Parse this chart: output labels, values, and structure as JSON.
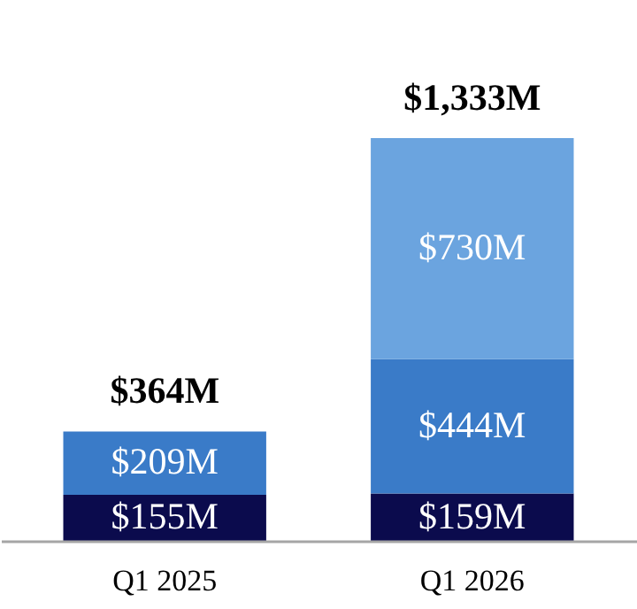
{
  "chart_data": {
    "type": "bar",
    "stacked": true,
    "categories": [
      "Q1 2025",
      "Q1 2026"
    ],
    "series": [
      {
        "color": "#0b0b4d",
        "values": [
          155,
          159
        ],
        "value_labels": [
          "$155M",
          "$159M"
        ]
      },
      {
        "color": "#3a7bc8",
        "values": [
          209,
          444
        ],
        "value_labels": [
          "$209M",
          "$444M"
        ]
      },
      {
        "color": "#6ba4df",
        "values": [
          null,
          730
        ],
        "value_labels": [
          null,
          "$730M"
        ]
      }
    ],
    "totals": [
      "$364M",
      "$1,333M"
    ],
    "grid": false
  }
}
